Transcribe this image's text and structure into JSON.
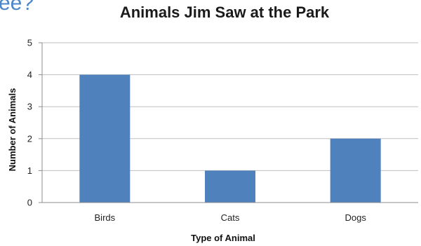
{
  "corner_fragment": "ee?",
  "chart_data": {
    "type": "bar",
    "title": "Animals Jim Saw at the Park",
    "xlabel": "Type of Animal",
    "ylabel": "Number of Animals",
    "categories": [
      "Birds",
      "Cats",
      "Dogs"
    ],
    "values": [
      4,
      1,
      2
    ],
    "ylim": [
      0,
      5
    ],
    "yticks": [
      0,
      1,
      2,
      3,
      4,
      5
    ],
    "grid": true,
    "legend": "none",
    "bar_color": "#4f81bd",
    "grid_color": "#bfbfbf"
  }
}
